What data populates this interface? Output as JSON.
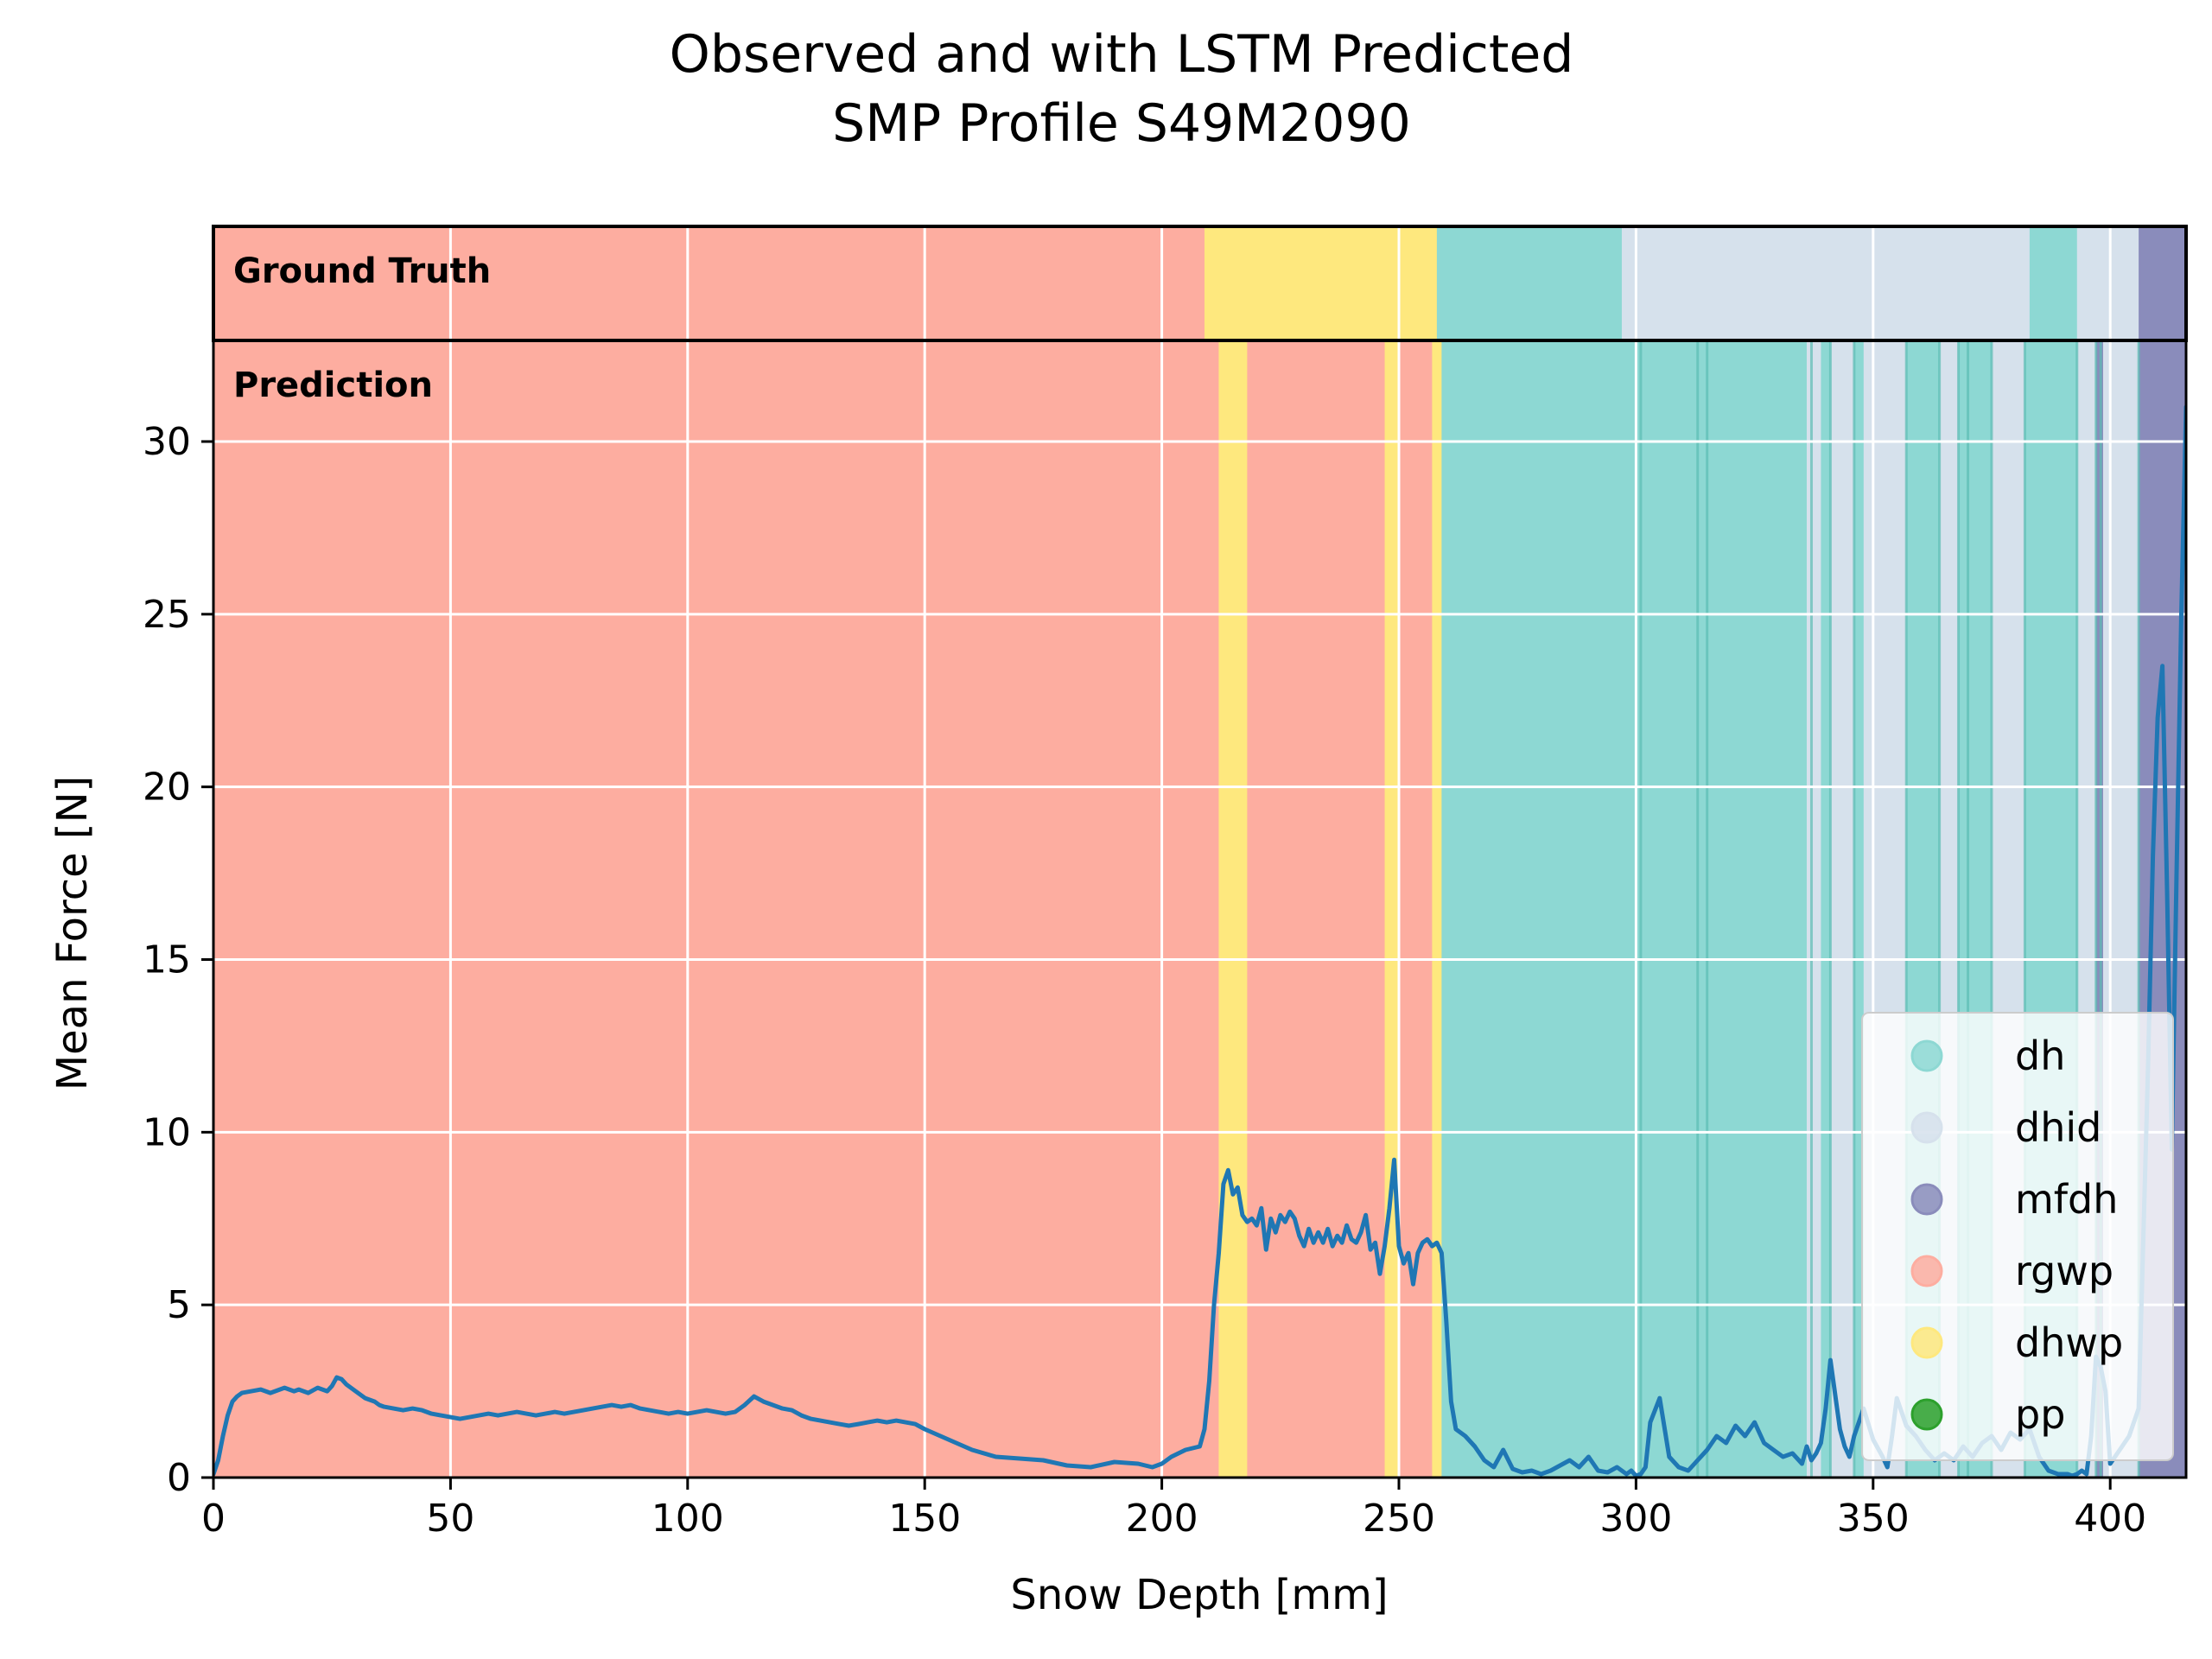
{
  "chart_data": {
    "type": "line",
    "title_line1": "Observed and with LSTM Predicted",
    "title_line2": "SMP Profile S49M2090",
    "xlabel": "Snow Depth [mm]",
    "ylabel": "Mean Force [N]",
    "xlim": [
      0,
      416
    ],
    "ylim": [
      0,
      33
    ],
    "xticks": [
      0,
      50,
      100,
      150,
      200,
      250,
      300,
      350,
      400
    ],
    "yticks": [
      0,
      5,
      10,
      15,
      20,
      25,
      30
    ],
    "grid": true,
    "legend_position": "lower-right",
    "band_labels": {
      "ground_truth": "Ground Truth",
      "prediction": "Prediction"
    },
    "classes": [
      {
        "name": "dh",
        "color": "#8dd8d3"
      },
      {
        "name": "dhid",
        "color": "#d6e1ec"
      },
      {
        "name": "mfdh",
        "color": "#8a8cbb"
      },
      {
        "name": "rgwp",
        "color": "#fdada0"
      },
      {
        "name": "dhwp",
        "color": "#fee87e"
      },
      {
        "name": "pp",
        "color": "#2ca02c"
      }
    ],
    "ground_truth_segments": [
      {
        "from": 0,
        "to": 209,
        "class": "rgwp"
      },
      {
        "from": 209,
        "to": 258,
        "class": "dhwp"
      },
      {
        "from": 258,
        "to": 297,
        "class": "dh"
      },
      {
        "from": 297,
        "to": 383,
        "class": "dhid"
      },
      {
        "from": 383,
        "to": 393,
        "class": "dh"
      },
      {
        "from": 393,
        "to": 406,
        "class": "dhid"
      },
      {
        "from": 406,
        "to": 416,
        "class": "mfdh"
      }
    ],
    "prediction_segments": [
      {
        "from": 0,
        "to": 212,
        "class": "rgwp"
      },
      {
        "from": 212,
        "to": 218,
        "class": "dhwp"
      },
      {
        "from": 218,
        "to": 247,
        "class": "rgwp"
      },
      {
        "from": 247,
        "to": 250,
        "class": "dhwp"
      },
      {
        "from": 250,
        "to": 257,
        "class": "rgwp"
      },
      {
        "from": 257,
        "to": 259,
        "class": "dhwp"
      },
      {
        "from": 259,
        "to": 336,
        "class": "dh"
      },
      {
        "from": 336,
        "to": 339,
        "class": "dhid"
      },
      {
        "from": 339,
        "to": 341,
        "class": "dh"
      },
      {
        "from": 341,
        "to": 346,
        "class": "dhid"
      },
      {
        "from": 346,
        "to": 348,
        "class": "dh"
      },
      {
        "from": 348,
        "to": 357,
        "class": "dhid"
      },
      {
        "from": 357,
        "to": 364,
        "class": "dh"
      },
      {
        "from": 364,
        "to": 368,
        "class": "dhid"
      },
      {
        "from": 368,
        "to": 375,
        "class": "dh"
      },
      {
        "from": 375,
        "to": 382,
        "class": "dhid"
      },
      {
        "from": 382,
        "to": 393,
        "class": "dh"
      },
      {
        "from": 393,
        "to": 397,
        "class": "dhid"
      },
      {
        "from": 397,
        "to": 398.5,
        "class": "mfdh"
      },
      {
        "from": 398.5,
        "to": 406,
        "class": "dhid"
      },
      {
        "from": 406,
        "to": 416,
        "class": "mfdh"
      }
    ],
    "prediction_boundaries": [
      301,
      313,
      315,
      337,
      341,
      346,
      357,
      364,
      368,
      370,
      375,
      382,
      393,
      397,
      398,
      406
    ],
    "series": [
      {
        "x": [
          0,
          1,
          2,
          3,
          4,
          5,
          6,
          8,
          10,
          12,
          14,
          15,
          17,
          18,
          20,
          22,
          24,
          25,
          26,
          27,
          28,
          30,
          32,
          34,
          35,
          36,
          38,
          40,
          42,
          44,
          46,
          48,
          50,
          52,
          54,
          56,
          58,
          60,
          62,
          64,
          66,
          68,
          70,
          72,
          74,
          76,
          78,
          80,
          82,
          84,
          86,
          88,
          90,
          92,
          94,
          96,
          98,
          100,
          102,
          104,
          106,
          108,
          110,
          112,
          114,
          116,
          118,
          120,
          122,
          124,
          126,
          128,
          130,
          132,
          134,
          136,
          138,
          140,
          142,
          144,
          146,
          148,
          150,
          155,
          160,
          165,
          170,
          175,
          180,
          185,
          190,
          195,
          198,
          200,
          202,
          205,
          208,
          209,
          210,
          211,
          212,
          213,
          214,
          215,
          216,
          217,
          218,
          219,
          220,
          221,
          222,
          223,
          224,
          225,
          226,
          227,
          228,
          229,
          230,
          231,
          232,
          233,
          234,
          235,
          236,
          237,
          238,
          239,
          240,
          241,
          242,
          243,
          244,
          245,
          246,
          247,
          248,
          249,
          250,
          251,
          252,
          253,
          254,
          255,
          256,
          257,
          258,
          259,
          260,
          261,
          262,
          264,
          266,
          268,
          270,
          272,
          274,
          276,
          278,
          280,
          282,
          284,
          286,
          288,
          290,
          292,
          294,
          296,
          298,
          299,
          300,
          301,
          302,
          303,
          305,
          307,
          309,
          311,
          313,
          315,
          317,
          319,
          321,
          323,
          325,
          327,
          329,
          331,
          333,
          335,
          336,
          337,
          338,
          339,
          340,
          341,
          343,
          344,
          345,
          346,
          348,
          350,
          352,
          353,
          354,
          355,
          357,
          359,
          361,
          363,
          365,
          367,
          369,
          371,
          373,
          375,
          377,
          379,
          381,
          383,
          385,
          387,
          389,
          391,
          392,
          393,
          394,
          395,
          396,
          397,
          398,
          399,
          400,
          402,
          404,
          406,
          407,
          408,
          409,
          410,
          411,
          412,
          413,
          414,
          415,
          416
        ],
        "y": [
          0.1,
          0.5,
          1.2,
          1.8,
          2.2,
          2.35,
          2.45,
          2.5,
          2.55,
          2.45,
          2.55,
          2.6,
          2.5,
          2.55,
          2.45,
          2.6,
          2.5,
          2.65,
          2.9,
          2.85,
          2.7,
          2.5,
          2.3,
          2.2,
          2.1,
          2.05,
          2.0,
          1.95,
          2.0,
          1.95,
          1.85,
          1.8,
          1.75,
          1.7,
          1.75,
          1.8,
          1.85,
          1.8,
          1.85,
          1.9,
          1.85,
          1.8,
          1.85,
          1.9,
          1.85,
          1.9,
          1.95,
          2.0,
          2.05,
          2.1,
          2.05,
          2.1,
          2.0,
          1.95,
          1.9,
          1.85,
          1.9,
          1.85,
          1.9,
          1.95,
          1.9,
          1.85,
          1.9,
          2.1,
          2.35,
          2.2,
          2.1,
          2.0,
          1.95,
          1.8,
          1.7,
          1.65,
          1.6,
          1.55,
          1.5,
          1.55,
          1.6,
          1.65,
          1.6,
          1.65,
          1.6,
          1.55,
          1.4,
          1.1,
          0.8,
          0.6,
          0.55,
          0.5,
          0.35,
          0.3,
          0.45,
          0.4,
          0.3,
          0.4,
          0.6,
          0.8,
          0.9,
          1.4,
          2.8,
          5.0,
          6.5,
          8.5,
          8.9,
          8.2,
          8.4,
          7.6,
          7.4,
          7.5,
          7.3,
          7.8,
          6.6,
          7.5,
          7.1,
          7.6,
          7.4,
          7.7,
          7.5,
          7.0,
          6.7,
          7.2,
          6.8,
          7.1,
          6.8,
          7.2,
          6.7,
          7.0,
          6.8,
          7.3,
          6.9,
          6.8,
          7.1,
          7.6,
          6.6,
          6.8,
          5.9,
          6.7,
          7.8,
          9.2,
          6.7,
          6.2,
          6.5,
          5.6,
          6.5,
          6.8,
          6.9,
          6.7,
          6.8,
          6.5,
          4.5,
          2.2,
          1.4,
          1.2,
          0.9,
          0.5,
          0.3,
          0.8,
          0.25,
          0.15,
          0.2,
          0.1,
          0.2,
          0.35,
          0.5,
          0.3,
          0.6,
          0.2,
          0.15,
          0.3,
          0.1,
          0.2,
          0.05,
          0.1,
          0.3,
          1.6,
          2.3,
          0.6,
          0.3,
          0.2,
          0.5,
          0.8,
          1.2,
          1.0,
          1.5,
          1.2,
          1.6,
          1.0,
          0.8,
          0.6,
          0.7,
          0.4,
          0.9,
          0.5,
          0.7,
          1.0,
          2.0,
          3.4,
          1.4,
          0.9,
          0.6,
          1.2,
          2.0,
          1.1,
          0.6,
          0.3,
          1.2,
          2.3,
          1.5,
          1.2,
          0.8,
          0.5,
          0.7,
          0.5,
          0.9,
          0.6,
          1.0,
          1.2,
          0.8,
          1.3,
          1.1,
          1.4,
          0.6,
          0.2,
          0.1,
          0.1,
          0.05,
          0.1,
          0.2,
          0.1,
          1.2,
          3.5,
          3.2,
          2.5,
          0.4,
          0.8,
          1.2,
          2.0,
          7.0,
          12.0,
          18.0,
          22.0,
          23.5,
          17.0,
          9.5,
          17.5,
          25.0,
          31.0
        ]
      }
    ]
  }
}
